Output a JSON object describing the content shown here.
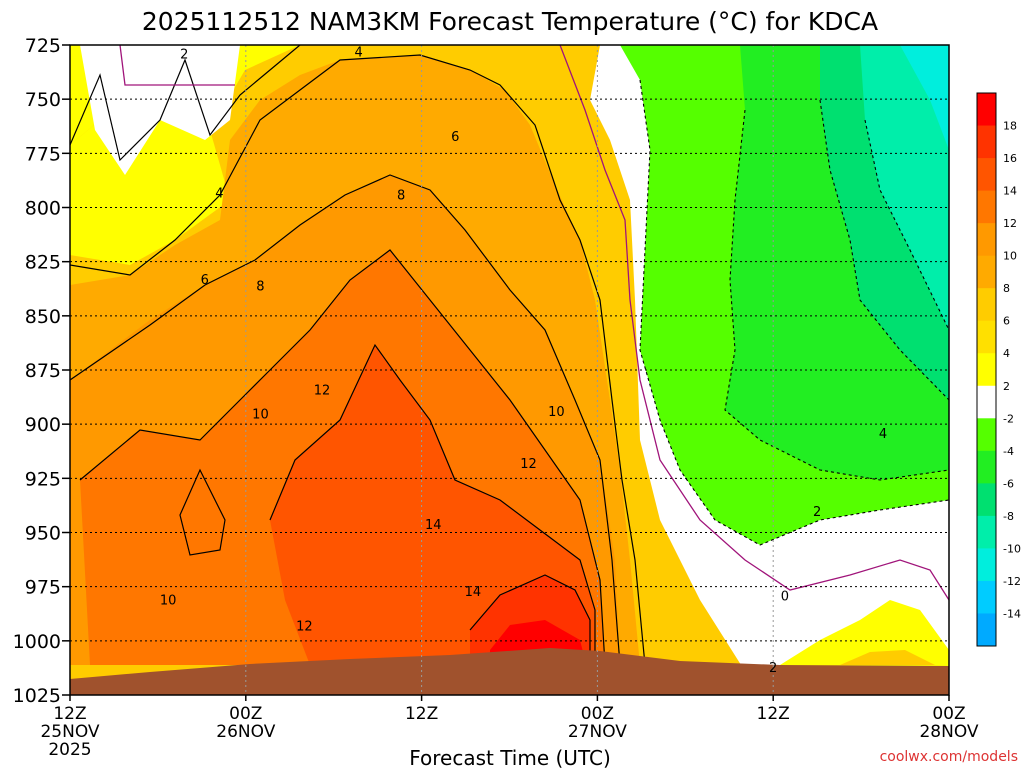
{
  "chart_data": {
    "type": "heatmap",
    "title": "2025112512 NAM3KM Forecast Temperature (°C) for KDCA",
    "xlabel": "Forecast Time (UTC)",
    "ylabel": "",
    "x_range_hours": [
      0,
      60
    ],
    "ylim_hpa": [
      725,
      1025
    ],
    "y_ticks": [
      "725",
      "750",
      "775",
      "800",
      "825",
      "850",
      "875",
      "900",
      "925",
      "950",
      "975",
      "1000",
      "1025"
    ],
    "x_ticks": [
      {
        "hour": 0,
        "line1": "12Z",
        "line2": "25NOV",
        "line3": "2025"
      },
      {
        "hour": 12,
        "line1": "00Z",
        "line2": "26NOV",
        "line3": ""
      },
      {
        "hour": 24,
        "line1": "12Z",
        "line2": "",
        "line3": ""
      },
      {
        "hour": 36,
        "line1": "00Z",
        "line2": "27NOV",
        "line3": ""
      },
      {
        "hour": 48,
        "line1": "12Z",
        "line2": "",
        "line3": ""
      },
      {
        "hour": 60,
        "line1": "00Z",
        "line2": "28NOV",
        "line3": ""
      }
    ],
    "colorbar": {
      "levels": [
        {
          "value": 18,
          "label": "18",
          "color": "#ff0000"
        },
        {
          "value": 16,
          "label": "16",
          "color": "#ff3300"
        },
        {
          "value": 14,
          "label": "14",
          "color": "#ff5500"
        },
        {
          "value": 12,
          "label": "12",
          "color": "#ff7700"
        },
        {
          "value": 10,
          "label": "10",
          "color": "#ff9900"
        },
        {
          "value": 8,
          "label": "8",
          "color": "#ffaa00"
        },
        {
          "value": 6,
          "label": "6",
          "color": "#ffcc00"
        },
        {
          "value": 4,
          "label": "4",
          "color": "#ffe000"
        },
        {
          "value": 2,
          "label": "2",
          "color": "#ffff00"
        },
        {
          "value": -2,
          "label": "-2",
          "color": "#ffffff"
        },
        {
          "value": -4,
          "label": "-4",
          "color": "#55ff00"
        },
        {
          "value": -6,
          "label": "-6",
          "color": "#22ee22"
        },
        {
          "value": -8,
          "label": "-8",
          "color": "#00e070"
        },
        {
          "value": -10,
          "label": "-10",
          "color": "#00eeaa"
        },
        {
          "value": -12,
          "label": "-12",
          "color": "#00eedd"
        },
        {
          "value": -14,
          "label": "-14",
          "color": "#00ccff"
        }
      ],
      "bottom_color": "#00aaff"
    },
    "contour_labels": [
      {
        "text": "2",
        "hour": 7.8,
        "hpa": 729
      },
      {
        "text": "4",
        "hour": 19.7,
        "hpa": 728
      },
      {
        "text": "6",
        "hour": 26.3,
        "hpa": 767
      },
      {
        "text": "4",
        "hour": 10.2,
        "hpa": 793
      },
      {
        "text": "8",
        "hour": 22.6,
        "hpa": 794
      },
      {
        "text": "6",
        "hour": 9.2,
        "hpa": 833
      },
      {
        "text": "8",
        "hour": 13.0,
        "hpa": 836
      },
      {
        "text": "12",
        "hour": 17.2,
        "hpa": 884
      },
      {
        "text": "10",
        "hour": 13.0,
        "hpa": 895
      },
      {
        "text": "10",
        "hour": 33.2,
        "hpa": 894
      },
      {
        "text": "12",
        "hour": 31.3,
        "hpa": 918
      },
      {
        "text": "4",
        "hour": 55.5,
        "hpa": 904
      },
      {
        "text": "2",
        "hour": 51.0,
        "hpa": 940
      },
      {
        "text": "14",
        "hour": 24.8,
        "hpa": 946
      },
      {
        "text": "10",
        "hour": 6.7,
        "hpa": 981
      },
      {
        "text": "14",
        "hour": 27.5,
        "hpa": 977
      },
      {
        "text": "12",
        "hour": 16.0,
        "hpa": 993
      },
      {
        "text": "0",
        "hour": 48.8,
        "hpa": 979
      },
      {
        "text": "2",
        "hour": 48.0,
        "hpa": 1012
      }
    ],
    "surface_color": "#a0522d",
    "watermark": "coolwx.com/models"
  }
}
